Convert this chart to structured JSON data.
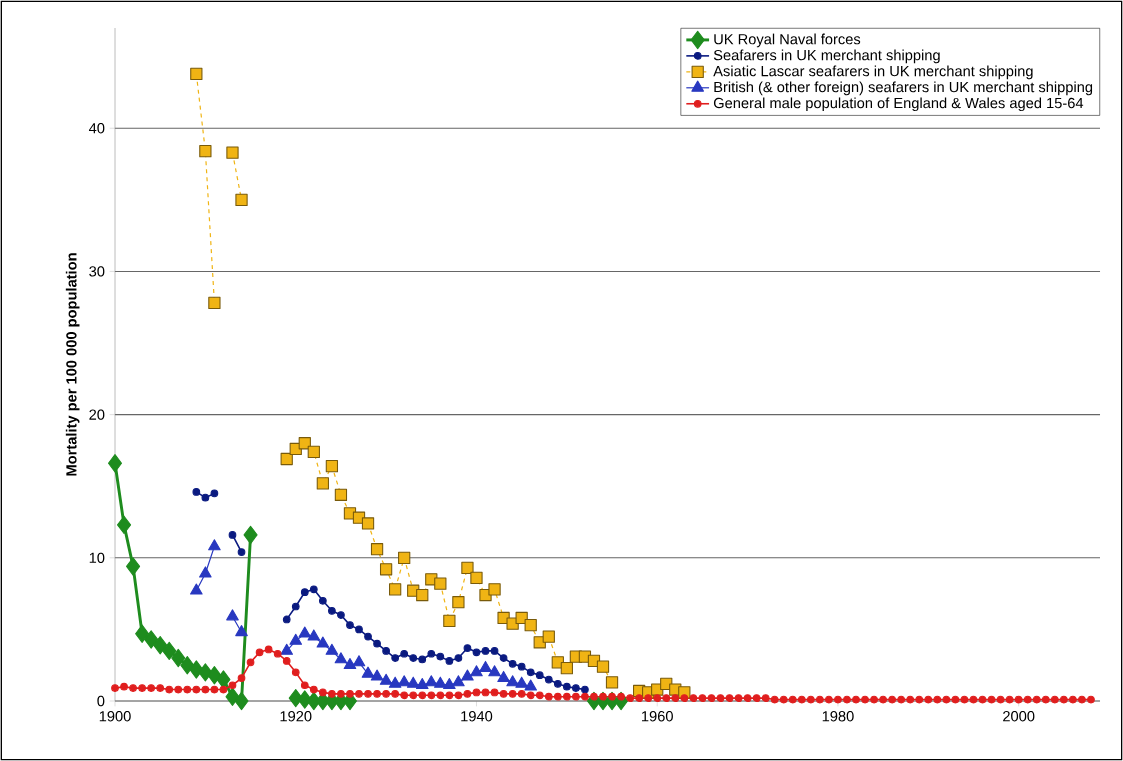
{
  "chart_data": {
    "type": "line",
    "ylabel": "Mortality per 100 000 population",
    "xlim": [
      1900,
      2009
    ],
    "ylim": [
      0,
      47
    ],
    "xticks": [
      1900,
      1920,
      1940,
      1960,
      1980,
      2000
    ],
    "yticks": [
      0,
      10,
      20,
      30,
      40
    ],
    "grid": "y",
    "legend": "top right",
    "series": [
      {
        "name": "UK Royal Naval forces",
        "color": "#1e8c1e",
        "marker": "diamond",
        "line_style": "solid",
        "x": [
          1900,
          1901,
          1902,
          1903,
          1904,
          1905,
          1906,
          1907,
          1908,
          1909,
          1910,
          1911,
          1912,
          1913,
          1914,
          1915,
          1916,
          1920,
          1921,
          1922,
          1923,
          1924,
          1925,
          1926,
          1927,
          1953,
          1954,
          1955,
          1956
        ],
        "values": [
          16.6,
          12.3,
          9.4,
          4.7,
          4.3,
          3.9,
          3.5,
          3.0,
          2.5,
          2.2,
          2.0,
          1.8,
          1.5,
          0.3,
          0,
          11.6,
          null,
          0.2,
          0.1,
          0,
          0,
          0,
          0,
          0,
          null,
          0,
          0,
          0,
          0
        ]
      },
      {
        "name": "Seafarers in UK merchant shipping",
        "color": "#0a1a80",
        "marker": "circle",
        "line_style": "solid",
        "x": [
          1909,
          1910,
          1911,
          1912,
          1913,
          1914,
          1915,
          1919,
          1920,
          1921,
          1922,
          1923,
          1924,
          1925,
          1926,
          1927,
          1928,
          1929,
          1930,
          1931,
          1932,
          1933,
          1934,
          1935,
          1936,
          1937,
          1938,
          1939,
          1940,
          1941,
          1942,
          1943,
          1944,
          1945,
          1946,
          1947,
          1948,
          1949,
          1950,
          1951,
          1952
        ],
        "values": [
          14.6,
          14.2,
          14.5,
          null,
          11.6,
          10.4,
          null,
          5.7,
          6.6,
          7.6,
          7.8,
          7.0,
          6.3,
          6.0,
          5.3,
          5.0,
          4.5,
          4.0,
          3.5,
          3.0,
          3.3,
          3.0,
          2.9,
          3.3,
          3.1,
          2.8,
          3.0,
          3.7,
          3.4,
          3.5,
          3.5,
          3.0,
          2.6,
          2.4,
          2.0,
          1.8,
          1.5,
          1.2,
          1.0,
          0.9,
          0.8
        ]
      },
      {
        "name": "Asiatic Lascar seafarers in UK merchant shipping",
        "color": "#f0b414",
        "marker": "square",
        "line_style": "dashed",
        "x": [
          1909,
          1910,
          1911,
          1912,
          1913,
          1914,
          1915,
          1919,
          1920,
          1921,
          1922,
          1923,
          1924,
          1925,
          1926,
          1927,
          1928,
          1929,
          1930,
          1931,
          1932,
          1933,
          1934,
          1935,
          1936,
          1937,
          1938,
          1939,
          1940,
          1941,
          1942,
          1943,
          1944,
          1945,
          1946,
          1947,
          1948,
          1949,
          1950,
          1951,
          1952,
          1953,
          1954,
          1955,
          1956,
          1958,
          1959,
          1960,
          1961,
          1962,
          1963
        ],
        "values": [
          43.8,
          38.4,
          27.8,
          null,
          38.3,
          35.0,
          null,
          16.9,
          17.6,
          18.0,
          17.4,
          15.2,
          16.4,
          14.4,
          13.1,
          12.8,
          12.4,
          10.6,
          9.2,
          7.8,
          10.0,
          7.7,
          7.4,
          8.5,
          8.2,
          5.6,
          6.9,
          9.3,
          8.6,
          7.4,
          7.8,
          5.8,
          5.4,
          5.8,
          5.3,
          4.1,
          4.5,
          2.7,
          2.3,
          3.1,
          3.1,
          2.8,
          2.4,
          1.3,
          null,
          0.7,
          0.6,
          0.8,
          1.2,
          0.8,
          0.6
        ]
      },
      {
        "name": "British (& other foreign) seafarers in UK merchant shipping",
        "color": "#2838c0",
        "marker": "triangle",
        "line_style": "solid",
        "x": [
          1909,
          1910,
          1911,
          1912,
          1913,
          1914,
          1915,
          1919,
          1920,
          1921,
          1922,
          1923,
          1924,
          1925,
          1926,
          1927,
          1928,
          1929,
          1930,
          1931,
          1932,
          1933,
          1934,
          1935,
          1936,
          1937,
          1938,
          1939,
          1940,
          1941,
          1942,
          1943,
          1944,
          1945,
          1946
        ],
        "values": [
          7.7,
          8.9,
          10.8,
          null,
          5.9,
          4.8,
          null,
          3.5,
          4.2,
          4.7,
          4.5,
          4.0,
          3.5,
          2.9,
          2.5,
          2.7,
          1.9,
          1.7,
          1.4,
          1.2,
          1.3,
          1.2,
          1.1,
          1.3,
          1.2,
          1.1,
          1.3,
          1.7,
          2.0,
          2.3,
          2.0,
          1.6,
          1.3,
          1.2,
          1.0
        ]
      },
      {
        "name": "General male population of England & Wales aged 15-64",
        "color": "#e01e1e",
        "marker": "circle",
        "line_style": "solid",
        "x": [
          1900,
          1901,
          1902,
          1903,
          1904,
          1905,
          1906,
          1907,
          1908,
          1909,
          1910,
          1911,
          1912,
          1913,
          1914,
          1915,
          1916,
          1917,
          1918,
          1919,
          1920,
          1921,
          1922,
          1923,
          1924,
          1925,
          1926,
          1927,
          1928,
          1929,
          1930,
          1931,
          1932,
          1933,
          1934,
          1935,
          1936,
          1937,
          1938,
          1939,
          1940,
          1941,
          1942,
          1943,
          1944,
          1945,
          1946,
          1947,
          1948,
          1949,
          1950,
          1951,
          1952,
          1953,
          1954,
          1955,
          1956,
          1957,
          1958,
          1959,
          1960,
          1961,
          1962,
          1963,
          1964,
          1965,
          1966,
          1967,
          1968,
          1969,
          1970,
          1971,
          1972,
          1973,
          1974,
          1975,
          1976,
          1977,
          1978,
          1979,
          1980,
          1981,
          1982,
          1983,
          1984,
          1985,
          1986,
          1987,
          1988,
          1989,
          1990,
          1991,
          1992,
          1993,
          1994,
          1995,
          1996,
          1997,
          1998,
          1999,
          2000,
          2001,
          2002,
          2003,
          2004,
          2005,
          2006,
          2007,
          2008
        ],
        "values": [
          0.9,
          1.0,
          0.9,
          0.9,
          0.9,
          0.9,
          0.8,
          0.8,
          0.8,
          0.8,
          0.8,
          0.8,
          0.8,
          1.1,
          1.6,
          2.7,
          3.4,
          3.6,
          3.3,
          2.8,
          2.0,
          1.1,
          0.8,
          0.6,
          0.5,
          0.5,
          0.5,
          0.5,
          0.5,
          0.5,
          0.5,
          0.5,
          0.4,
          0.4,
          0.4,
          0.4,
          0.4,
          0.4,
          0.4,
          0.5,
          0.6,
          0.6,
          0.6,
          0.5,
          0.5,
          0.5,
          0.4,
          0.4,
          0.3,
          0.3,
          0.3,
          0.3,
          0.3,
          0.3,
          0.3,
          0.3,
          0.3,
          0.2,
          0.2,
          0.2,
          0.2,
          0.2,
          0.2,
          0.2,
          0.2,
          0.2,
          0.2,
          0.2,
          0.2,
          0.2,
          0.2,
          0.2,
          0.2,
          0.1,
          0.1,
          0.1,
          0.1,
          0.1,
          0.1,
          0.1,
          0.1,
          0.1,
          0.1,
          0.1,
          0.1,
          0.1,
          0.1,
          0.1,
          0.1,
          0.1,
          0.1,
          0.1,
          0.1,
          0.1,
          0.1,
          0.1,
          0.1,
          0.1,
          0.1,
          0.1,
          0.1,
          0.1,
          0.1,
          0.1,
          0.1,
          0.1,
          0.1,
          0.1,
          0.1
        ]
      }
    ]
  }
}
